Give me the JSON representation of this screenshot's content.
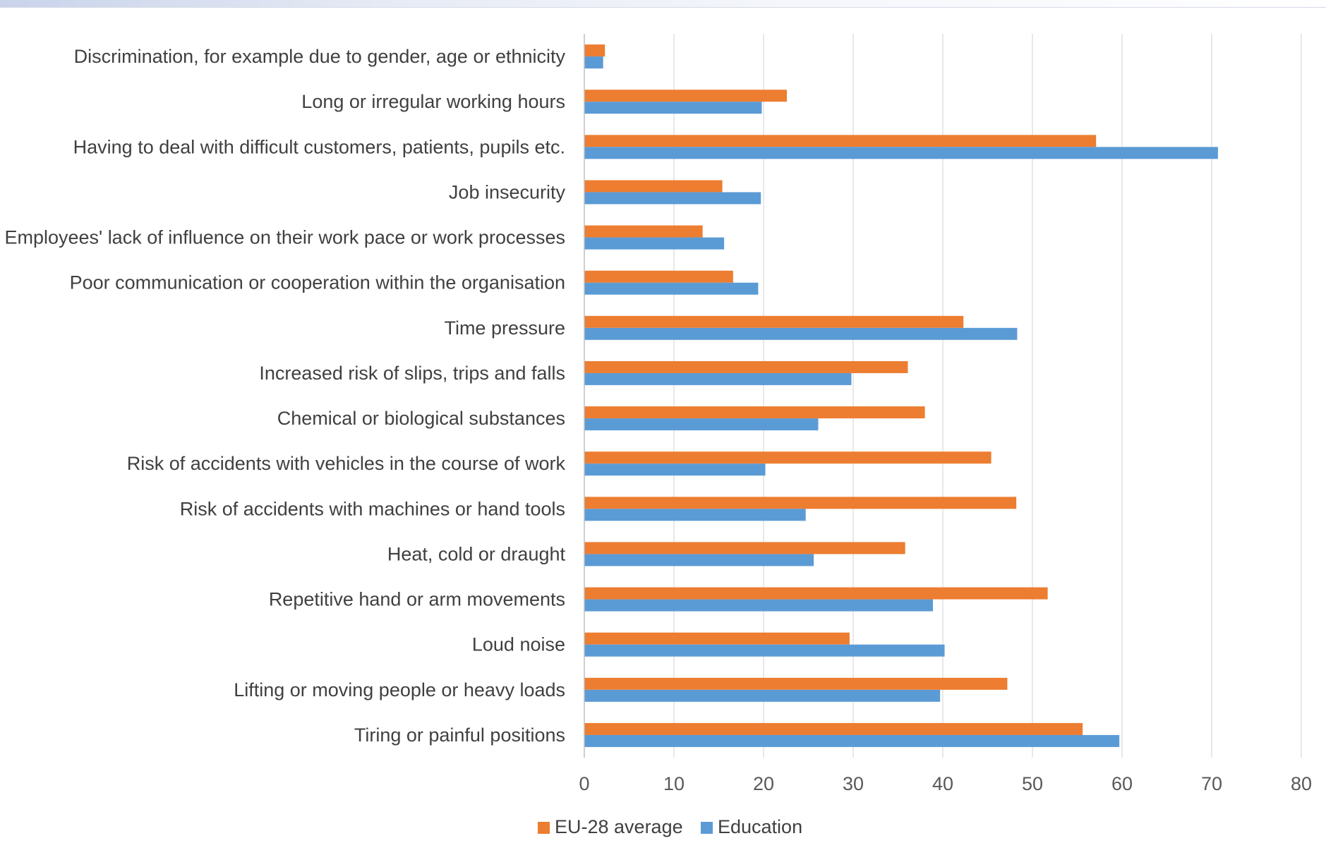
{
  "chart_data": {
    "type": "bar",
    "orientation": "horizontal",
    "categories": [
      "Discrimination, for example due to gender, age or ethnicity",
      "Long or irregular working hours",
      "Having to deal with difficult customers, patients, pupils etc.",
      "Job insecurity",
      "Employees' lack of influence on their work pace or work processes",
      "Poor communication or cooperation within the organisation",
      "Time pressure",
      "Increased risk of slips, trips and falls",
      "Chemical or biological substances",
      "Risk of accidents with vehicles in the course of work",
      "Risk of accidents with machines or hand tools",
      "Heat, cold or draught",
      "Repetitive hand or arm movements",
      "Loud noise",
      "Lifting or moving people or heavy loads",
      "Tiring or painful positions"
    ],
    "series": [
      {
        "name": "EU-28 average",
        "color": "#ED7D31",
        "values": [
          2.3,
          22.6,
          57.1,
          15.4,
          13.2,
          16.6,
          42.3,
          36.1,
          38.0,
          45.4,
          48.2,
          35.8,
          51.7,
          29.6,
          47.2,
          55.6
        ]
      },
      {
        "name": "Education",
        "color": "#5B9BD5",
        "values": [
          2.1,
          19.8,
          70.7,
          19.7,
          15.6,
          19.4,
          48.3,
          29.8,
          26.1,
          20.2,
          24.7,
          25.6,
          38.9,
          40.2,
          39.7,
          59.7
        ]
      }
    ],
    "x_ticks": [
      "0",
      "10",
      "20",
      "30",
      "40",
      "50",
      "60",
      "70",
      "80"
    ],
    "xlim": [
      0,
      80
    ],
    "grid": "vertical",
    "legend_position": "bottom",
    "title": "",
    "xlabel": "",
    "ylabel": ""
  }
}
